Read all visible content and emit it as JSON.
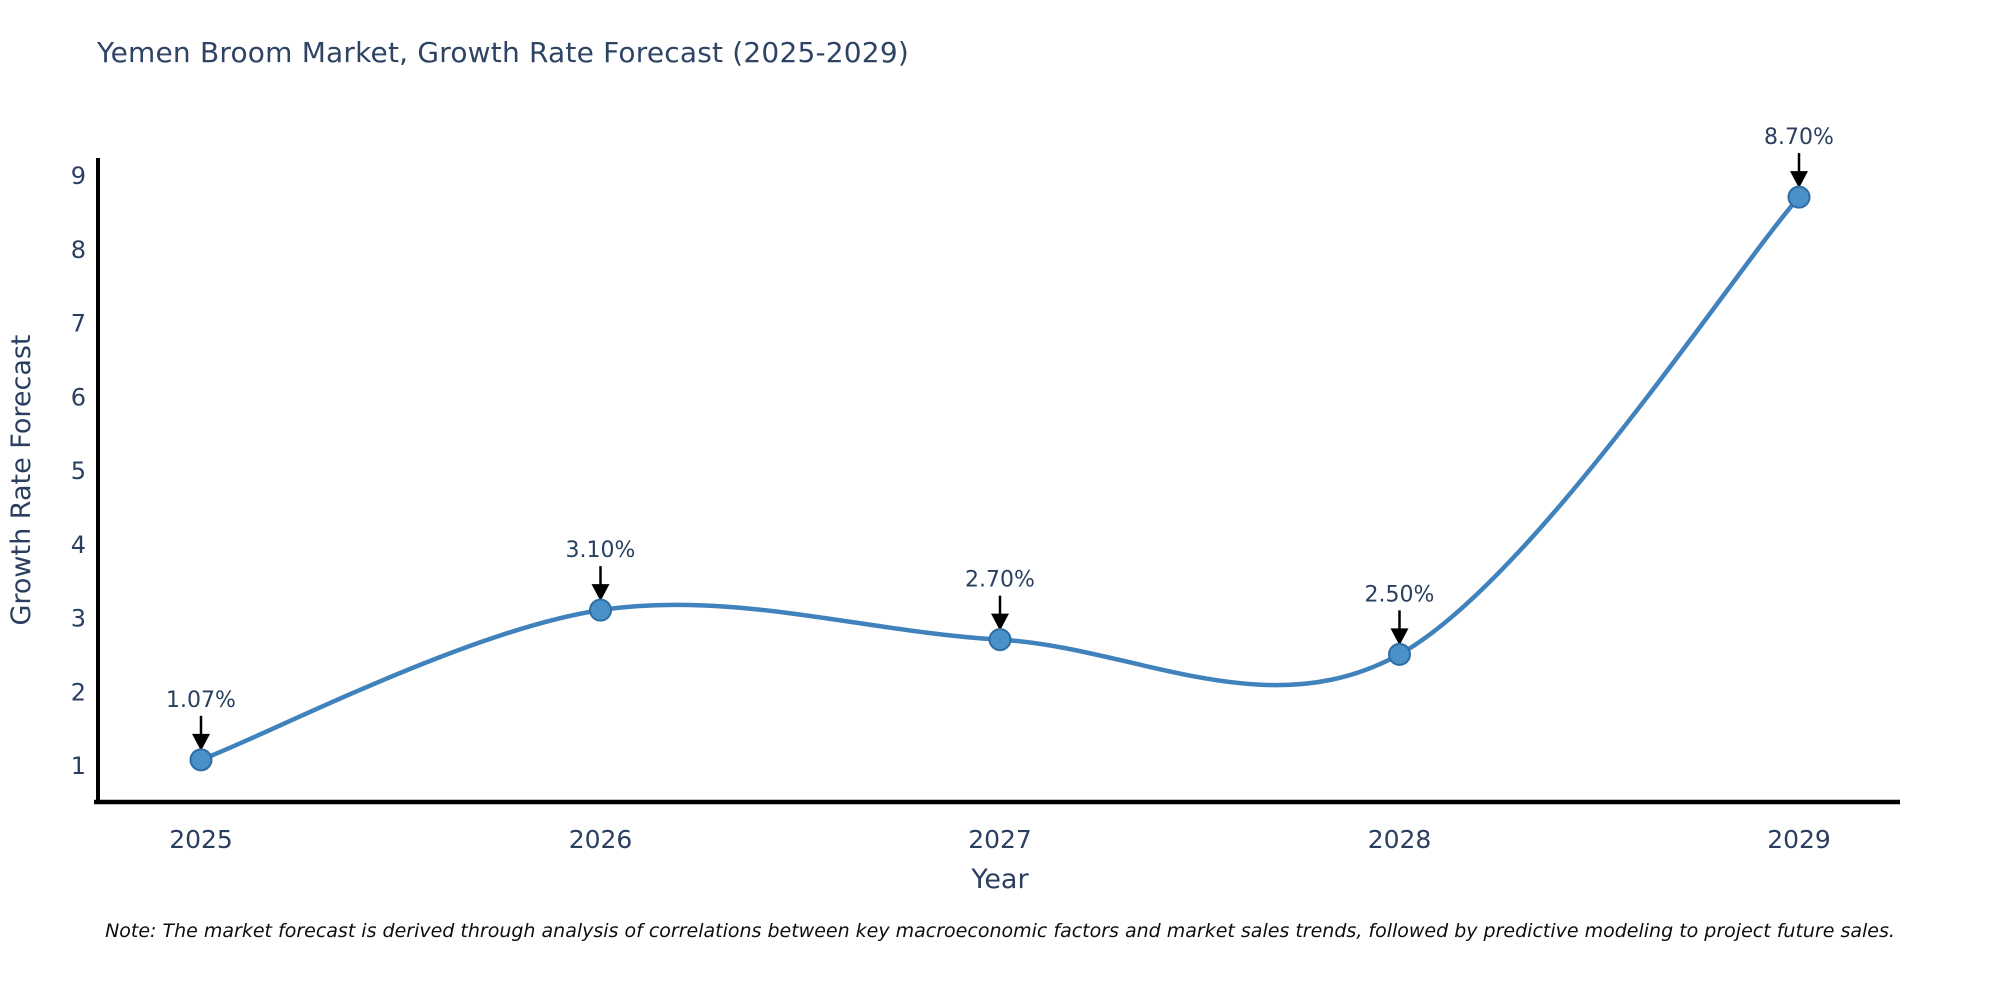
{
  "title": "Yemen Broom Market, Growth Rate Forecast (2025-2029)",
  "note": "Note: The market forecast is derived through analysis of correlations between key macroeconomic factors and market sales trends, followed by predictive modeling to project future sales.",
  "chart_data": {
    "type": "line",
    "line_shape": "spline",
    "title": "Yemen Broom Market, Growth Rate Forecast (2025-2029)",
    "categories": [
      "2025",
      "2026",
      "2027",
      "2028",
      "2029"
    ],
    "series": [
      {
        "name": "Growth Rate Forecast",
        "values": [
          1.07,
          3.1,
          2.7,
          2.5,
          8.7
        ],
        "point_labels": [
          "1.07%",
          "3.10%",
          "2.70%",
          "2.50%",
          "8.70%"
        ]
      }
    ],
    "xlabel": "Year",
    "ylabel": "Growth Rate Forecast",
    "yticks": [
      1,
      2,
      3,
      4,
      5,
      6,
      7,
      8,
      9
    ],
    "ylim": [
      0.45,
      9.3
    ],
    "grid": false,
    "legend": "none",
    "annotations_arrow": "down-arrow-to-point",
    "colors": {
      "line": "#3f82bc",
      "marker_fill": "#4a90c9",
      "marker_stroke": "#2e6da4",
      "axis": "#000000",
      "tick_text": "#2a3f5f",
      "annotation_text": "#2a3f5f",
      "arrow": "#000000",
      "background": "#ffffff"
    }
  }
}
